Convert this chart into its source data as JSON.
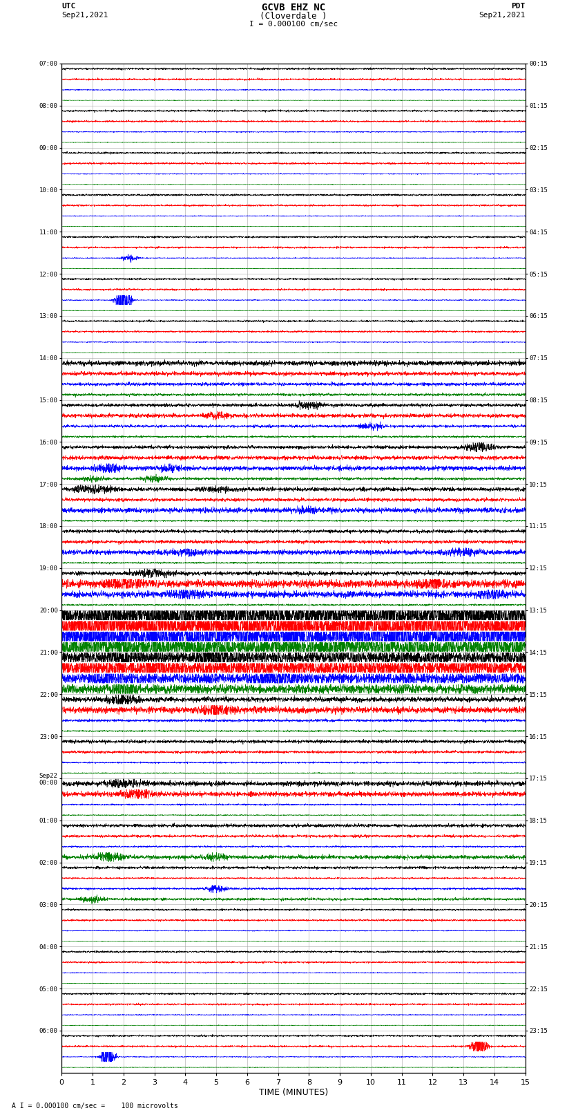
{
  "title_line1": "GCVB EHZ NC",
  "title_line2": "(Cloverdale )",
  "scale_text": "I = 0.000100 cm/sec",
  "footer_text": "A I = 0.000100 cm/sec =    100 microvolts",
  "utc_label": "UTC",
  "utc_date": "Sep21,2021",
  "pdt_label": "PDT",
  "pdt_date": "Sep21,2021",
  "xlabel": "TIME (MINUTES)",
  "left_times_utc": [
    "07:00",
    "08:00",
    "09:00",
    "10:00",
    "11:00",
    "12:00",
    "13:00",
    "14:00",
    "15:00",
    "16:00",
    "17:00",
    "18:00",
    "19:00",
    "20:00",
    "21:00",
    "22:00",
    "23:00",
    "Sep22\n00:00",
    "01:00",
    "02:00",
    "03:00",
    "04:00",
    "05:00",
    "06:00"
  ],
  "right_times_pdt": [
    "00:15",
    "01:15",
    "02:15",
    "03:15",
    "04:15",
    "05:15",
    "06:15",
    "07:15",
    "08:15",
    "09:15",
    "10:15",
    "11:15",
    "12:15",
    "13:15",
    "14:15",
    "15:15",
    "16:15",
    "17:15",
    "18:15",
    "19:15",
    "20:15",
    "21:15",
    "22:15",
    "23:15"
  ],
  "num_rows": 24,
  "traces_per_row": 4,
  "colors": [
    "black",
    "red",
    "blue",
    "green"
  ],
  "bg_color": "#ffffff",
  "grid_color": "#999999",
  "xmin": 0,
  "xmax": 15,
  "xticks": [
    0,
    1,
    2,
    3,
    4,
    5,
    6,
    7,
    8,
    9,
    10,
    11,
    12,
    13,
    14,
    15
  ],
  "noise_seed": 12345,
  "n_samples": 3000
}
